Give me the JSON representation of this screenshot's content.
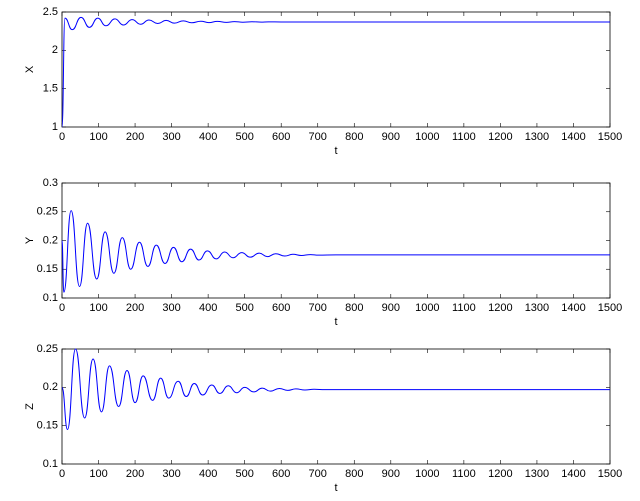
{
  "chart_data": [
    {
      "type": "line",
      "xlabel": "t",
      "ylabel": "X",
      "color": "#0000ff",
      "xlim": [
        0,
        1500
      ],
      "xticks": [
        0,
        100,
        200,
        300,
        400,
        500,
        600,
        700,
        800,
        900,
        1000,
        1100,
        1200,
        1300,
        1400,
        1500
      ],
      "ylim": [
        1,
        2.5
      ],
      "yticks": [
        1,
        1.5,
        2,
        2.5
      ],
      "x": [
        0,
        8,
        28,
        52,
        75,
        98,
        120,
        145,
        168,
        192,
        215,
        238,
        262,
        285,
        308,
        332,
        355,
        380,
        402,
        425,
        450,
        472,
        495,
        520,
        545,
        565,
        600,
        1500
      ],
      "values": [
        1,
        2.42,
        2.27,
        2.43,
        2.3,
        2.42,
        2.32,
        2.41,
        2.33,
        2.4,
        2.34,
        2.395,
        2.35,
        2.39,
        2.355,
        2.385,
        2.36,
        2.38,
        2.362,
        2.378,
        2.365,
        2.375,
        2.367,
        2.373,
        2.368,
        2.372,
        2.37,
        2.37
      ]
    },
    {
      "type": "line",
      "xlabel": "t",
      "ylabel": "Y",
      "color": "#0000ff",
      "xlim": [
        0,
        1500
      ],
      "xticks": [
        0,
        100,
        200,
        300,
        400,
        500,
        600,
        700,
        800,
        900,
        1000,
        1100,
        1200,
        1300,
        1400,
        1500
      ],
      "ylim": [
        0.1,
        0.3
      ],
      "yticks": [
        0.1,
        0.15,
        0.2,
        0.25,
        0.3
      ],
      "x": [
        0,
        5,
        25,
        48,
        70,
        95,
        118,
        142,
        165,
        188,
        212,
        235,
        258,
        282,
        305,
        328,
        352,
        375,
        398,
        422,
        445,
        468,
        492,
        515,
        540,
        562,
        585,
        610,
        632,
        655,
        680,
        702,
        750,
        1500
      ],
      "values": [
        0.2,
        0.11,
        0.252,
        0.12,
        0.23,
        0.133,
        0.215,
        0.143,
        0.205,
        0.15,
        0.197,
        0.155,
        0.192,
        0.16,
        0.188,
        0.163,
        0.185,
        0.166,
        0.182,
        0.168,
        0.18,
        0.17,
        0.179,
        0.171,
        0.178,
        0.172,
        0.177,
        0.173,
        0.176,
        0.174,
        0.1755,
        0.1745,
        0.175,
        0.175
      ]
    },
    {
      "type": "line",
      "xlabel": "t",
      "ylabel": "Z",
      "color": "#0000ff",
      "xlim": [
        0,
        1500
      ],
      "xticks": [
        0,
        100,
        200,
        300,
        400,
        500,
        600,
        700,
        800,
        900,
        1000,
        1100,
        1200,
        1300,
        1400,
        1500
      ],
      "ylim": [
        0.1,
        0.25
      ],
      "yticks": [
        0.1,
        0.15,
        0.2,
        0.25
      ],
      "x": [
        0,
        15,
        37,
        62,
        85,
        108,
        130,
        155,
        178,
        200,
        222,
        248,
        270,
        292,
        318,
        340,
        362,
        385,
        410,
        432,
        455,
        478,
        500,
        525,
        548,
        570,
        595,
        618,
        640,
        665,
        690,
        720,
        1500
      ],
      "values": [
        0.2,
        0.145,
        0.25,
        0.16,
        0.237,
        0.168,
        0.228,
        0.175,
        0.222,
        0.18,
        0.215,
        0.183,
        0.212,
        0.186,
        0.208,
        0.188,
        0.205,
        0.19,
        0.203,
        0.192,
        0.202,
        0.193,
        0.2,
        0.194,
        0.199,
        0.195,
        0.1985,
        0.196,
        0.198,
        0.1965,
        0.1975,
        0.197,
        0.197
      ]
    }
  ]
}
